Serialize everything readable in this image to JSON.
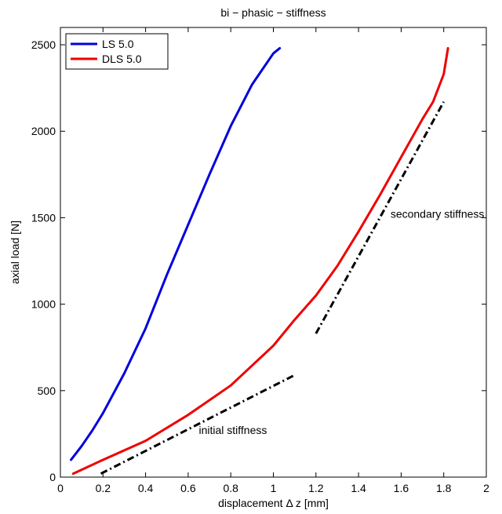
{
  "chart_data": {
    "type": "line",
    "title": "bi − phasic − stiffness",
    "xlabel": "displacement Δ z [mm]",
    "ylabel": "axial load [N]",
    "xlim": [
      0,
      2
    ],
    "ylim": [
      0,
      2600
    ],
    "xticks": [
      0,
      0.2,
      0.4,
      0.6,
      0.8,
      1,
      1.2,
      1.4,
      1.6,
      1.8,
      2
    ],
    "xtick_labels": [
      "0",
      "0.2",
      "0.4",
      "0.6",
      "0.8",
      "1",
      "1.2",
      "1.4",
      "1.6",
      "1.8",
      "2"
    ],
    "yticks": [
      0,
      500,
      1000,
      1500,
      2000,
      2500
    ],
    "ytick_labels": [
      "0",
      "500",
      "1000",
      "1500",
      "2000",
      "2500"
    ],
    "grid": false,
    "legend": "top-left",
    "series": [
      {
        "name": "LS 5.0",
        "color": "#0000dd",
        "style": "solid",
        "x": [
          0.05,
          0.1,
          0.15,
          0.2,
          0.3,
          0.4,
          0.5,
          0.6,
          0.7,
          0.8,
          0.9,
          0.95,
          1.0,
          1.03
        ],
        "y": [
          100,
          180,
          270,
          370,
          600,
          860,
          1170,
          1460,
          1750,
          2030,
          2270,
          2360,
          2450,
          2480
        ]
      },
      {
        "name": "DLS 5.0",
        "color": "#ee0000",
        "style": "solid",
        "x": [
          0.06,
          0.2,
          0.4,
          0.6,
          0.8,
          1.0,
          1.1,
          1.2,
          1.3,
          1.4,
          1.5,
          1.6,
          1.7,
          1.75,
          1.8,
          1.82
        ],
        "y": [
          20,
          100,
          210,
          360,
          530,
          760,
          910,
          1050,
          1220,
          1420,
          1630,
          1850,
          2070,
          2170,
          2330,
          2480
        ]
      }
    ],
    "reference_lines": [
      {
        "color": "#000000",
        "style": "dashdot",
        "x": [
          0.19,
          1.1
        ],
        "y": [
          20,
          590
        ]
      },
      {
        "color": "#000000",
        "style": "dashdot",
        "x": [
          1.2,
          1.8
        ],
        "y": [
          830,
          2170
        ]
      }
    ],
    "annotations": [
      {
        "text": "initial stiffness",
        "x": 0.65,
        "y": 250
      },
      {
        "text": "secondary stiffness",
        "x": 1.55,
        "y": 1500
      }
    ]
  }
}
